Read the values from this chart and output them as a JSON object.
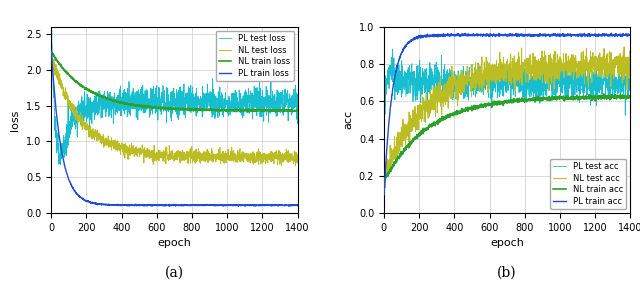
{
  "epochs": 1400,
  "subplot_a": {
    "xlabel": "epoch",
    "ylabel": "loss",
    "ylim": [
      0.0,
      2.6
    ],
    "yticks": [
      0.0,
      0.5,
      1.0,
      1.5,
      2.0,
      2.5
    ],
    "xlim": [
      0,
      1400
    ],
    "xticks": [
      0,
      200,
      400,
      600,
      800,
      1000,
      1200,
      1400
    ],
    "lines": {
      "PL_train": {
        "color": "#1f4dd4",
        "label": "PL train loss",
        "lw": 1.0,
        "zorder": 4
      },
      "NL_train": {
        "color": "#2ca02c",
        "label": "NL train loss",
        "lw": 1.2,
        "zorder": 3
      },
      "PL_test": {
        "color": "#17becf",
        "label": "PL test loss",
        "lw": 0.6,
        "zorder": 2
      },
      "NL_test": {
        "color": "#bcbd22",
        "label": "NL test loss",
        "lw": 0.7,
        "zorder": 2
      }
    }
  },
  "subplot_b": {
    "xlabel": "epoch",
    "ylabel": "acc",
    "ylim": [
      0.0,
      1.0
    ],
    "yticks": [
      0.0,
      0.2,
      0.4,
      0.6,
      0.8,
      1.0
    ],
    "xlim": [
      0,
      1400
    ],
    "xticks": [
      0,
      200,
      400,
      600,
      800,
      1000,
      1200,
      1400
    ],
    "lines": {
      "PL_train": {
        "color": "#1f4dd4",
        "label": "PL train acc",
        "lw": 1.0,
        "zorder": 4
      },
      "NL_train": {
        "color": "#2ca02c",
        "label": "NL train acc",
        "lw": 1.2,
        "zorder": 3
      },
      "PL_test": {
        "color": "#17becf",
        "label": "PL test acc",
        "lw": 0.6,
        "zorder": 2
      },
      "NL_test": {
        "color": "#bcbd22",
        "label": "NL test acc",
        "lw": 0.7,
        "zorder": 2
      }
    }
  },
  "caption_a": "(a)",
  "caption_b": "(b)",
  "bg_color": "#ffffff",
  "grid_color": "#cccccc",
  "caption_fontsize": 10
}
